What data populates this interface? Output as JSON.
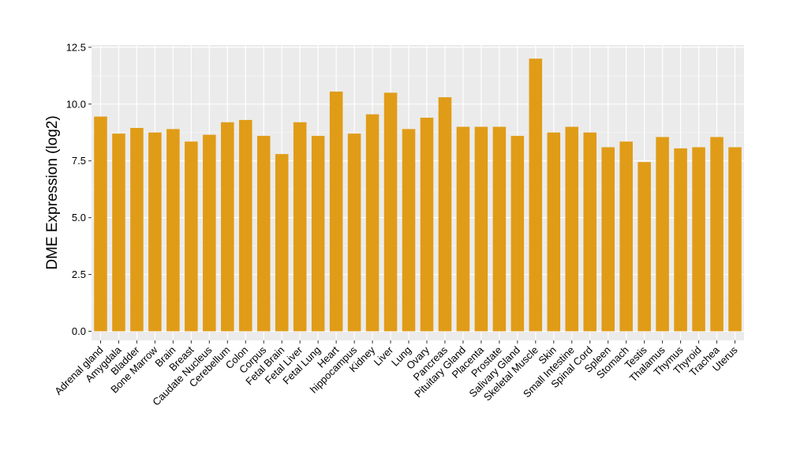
{
  "chart_data": {
    "type": "bar",
    "title": "",
    "xlabel": "",
    "ylabel": "DME Expression (log2)",
    "ylim": [
      -0.4,
      12.6
    ],
    "yticks": [
      0.0,
      2.5,
      5.0,
      7.5,
      10.0,
      12.5
    ],
    "ytick_labels": [
      "0.0",
      "2.5",
      "5.0",
      "7.5",
      "10.0",
      "12.5"
    ],
    "bar_color": "#e09c17",
    "panel_color": "#ebebeb",
    "grid": true,
    "categories": [
      "Adrenal gland",
      "Amygdala",
      "Bladder",
      "Bone Marrow",
      "Brain",
      "Breast",
      "Caudate Nucleus",
      "Cerebellum",
      "Colon",
      "Corpus",
      "Fetal Brain",
      "Fetal Liver",
      "Fetal Lung",
      "Heart",
      "hippocampus",
      "Kidney",
      "Liver",
      "Lung",
      "Ovary",
      "Pancreas",
      "Pituitary Gland",
      "Placenta",
      "Prostate",
      "Salivary Gland",
      "Skeletal Muscle",
      "Skin",
      "Small Intestine",
      "Spinal Cord",
      "Spleen",
      "Stomach",
      "Testis",
      "Thalamus",
      "Thymus",
      "Thyroid",
      "Trachea",
      "Uterus"
    ],
    "values": [
      9.45,
      8.7,
      8.95,
      8.75,
      8.9,
      8.35,
      8.65,
      9.2,
      9.3,
      8.6,
      7.8,
      9.2,
      8.6,
      10.55,
      8.7,
      9.55,
      10.5,
      8.9,
      9.4,
      10.3,
      9.0,
      9.0,
      9.0,
      8.6,
      12.0,
      8.75,
      9.0,
      8.75,
      8.1,
      8.35,
      7.45,
      8.55,
      8.05,
      8.1,
      8.55,
      8.1
    ]
  }
}
